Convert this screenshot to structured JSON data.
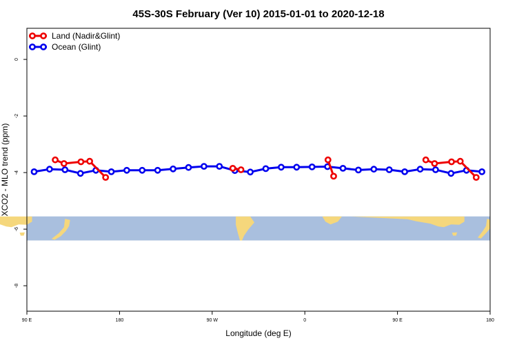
{
  "chart_data": {
    "type": "line",
    "title": "45S-30S February (Ver 10)   2015-01-01 to 2020-12-18",
    "xlabel": "Longitude (deg E)",
    "ylabel": "XCO2 - MLO trend (ppm)",
    "x_ticks": [
      {
        "value": 90,
        "label": "90 E"
      },
      {
        "value": 180,
        "label": "180"
      },
      {
        "value": 270,
        "label": "90 W"
      },
      {
        "value": 360,
        "label": "0"
      },
      {
        "value": 450,
        "label": "90 E"
      },
      {
        "value": 540,
        "label": "180"
      }
    ],
    "y_ticks": [
      0,
      -2,
      -4,
      -6,
      -8
    ],
    "xlim": [
      90,
      540
    ],
    "ylim": [
      -8.9,
      1.1
    ],
    "grid": false,
    "legend_position": "top-left",
    "map_band": {
      "y_top": -5.55,
      "y_bottom": -6.4,
      "ocean_color": "#a9bfde",
      "land_color": "#f5d77c"
    },
    "series": [
      {
        "name": "Land (Nadir&Glint)",
        "color": "#ee0000",
        "segments": [
          [
            [
              117.5,
              -3.55
            ],
            [
              126,
              -3.68
            ],
            [
              142.5,
              -3.62
            ],
            [
              151,
              -3.6
            ],
            [
              166.5,
              -4.17
            ]
          ],
          [
            [
              290,
              -3.85
            ],
            [
              298,
              -3.9
            ]
          ],
          [
            [
              382.5,
              -3.55
            ],
            [
              388,
              -4.13
            ]
          ],
          [
            [
              477.5,
              -3.55
            ],
            [
              486,
              -3.68
            ],
            [
              502.5,
              -3.62
            ],
            [
              511,
              -3.6
            ],
            [
              526.5,
              -4.17
            ]
          ]
        ]
      },
      {
        "name": "Ocean (Glint)",
        "color": "#0000ee",
        "segments": [
          [
            [
              97,
              -3.97
            ],
            [
              112,
              -3.88
            ],
            [
              127,
              -3.9
            ],
            [
              142,
              -4.03
            ],
            [
              157,
              -3.92
            ],
            [
              172,
              -3.97
            ],
            [
              187,
              -3.92
            ],
            [
              202,
              -3.92
            ],
            [
              217,
              -3.92
            ],
            [
              232,
              -3.87
            ],
            [
              247,
              -3.82
            ],
            [
              262,
              -3.78
            ],
            [
              277,
              -3.78
            ],
            [
              292,
              -3.93
            ],
            [
              307,
              -3.98
            ],
            [
              322,
              -3.86
            ],
            [
              337,
              -3.81
            ],
            [
              352,
              -3.81
            ],
            [
              367,
              -3.8
            ],
            [
              382,
              -3.79
            ],
            [
              397,
              -3.85
            ],
            [
              412,
              -3.91
            ],
            [
              427,
              -3.88
            ],
            [
              442,
              -3.9
            ],
            [
              457,
              -3.97
            ],
            [
              472,
              -3.88
            ],
            [
              487,
              -3.9
            ],
            [
              502,
              -4.03
            ],
            [
              517,
              -3.92
            ],
            [
              532,
              -3.97
            ]
          ]
        ]
      }
    ]
  }
}
